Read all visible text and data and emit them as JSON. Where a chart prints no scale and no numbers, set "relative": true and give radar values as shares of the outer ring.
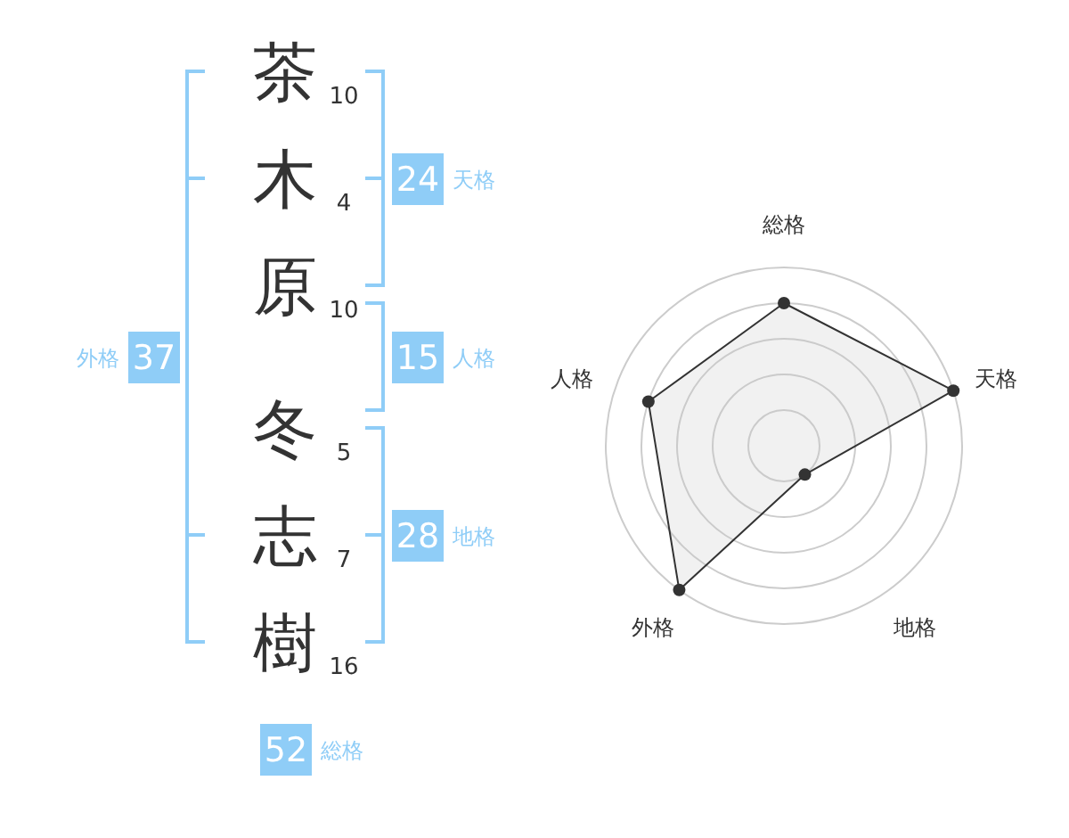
{
  "chart_data": [
    {
      "type": "other",
      "categories": [
        "茶",
        "木",
        "原",
        "冬",
        "志",
        "樹"
      ],
      "values": [
        10,
        4,
        10,
        5,
        7,
        16
      ],
      "data_labels": true,
      "color": "#8fcdf7",
      "annotations": [
        "24",
        "天格",
        "15",
        "人格",
        "28",
        "地格",
        "37",
        "外格",
        "52",
        "総格"
      ]
    },
    {
      "type": "radar",
      "categories": [
        "総格",
        "天格",
        "地格",
        "外格",
        "人格"
      ],
      "relative": true,
      "grid": true,
      "marker": "circle",
      "series": [
        {
          "color": "#333333",
          "values": [
            0.8,
            1,
            0.2,
            1,
            0.8
          ]
        }
      ]
    }
  ]
}
